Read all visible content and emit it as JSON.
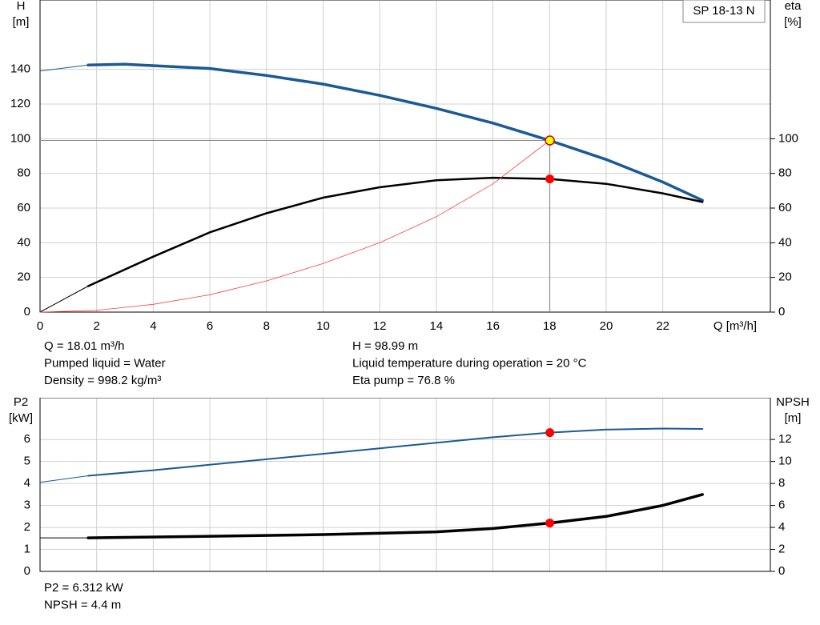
{
  "chart_data": [
    {
      "type": "line",
      "title": "SP 18-13 N",
      "xlabel": "Q [m³/h]",
      "ylabel": [
        "H",
        "[m]"
      ],
      "y2label": [
        "eta",
        "[%]"
      ],
      "xlim": [
        0,
        25.8
      ],
      "xticks": [
        0,
        2,
        4,
        6,
        8,
        10,
        12,
        14,
        16,
        18,
        20,
        22
      ],
      "xtick_labels": true,
      "ylim": [
        0,
        180
      ],
      "yticks": [
        0,
        20,
        40,
        60,
        80,
        100,
        120,
        140
      ],
      "y2lim": [
        0,
        180
      ],
      "y2ticks": [
        0,
        20,
        40,
        60,
        80,
        100
      ],
      "grid": true,
      "series": [
        {
          "color": "#1a5a96",
          "line_width": 1,
          "x": [
            0,
            1.7
          ],
          "values": [
            139,
            142.5
          ]
        },
        {
          "color": "#1a5a96",
          "line_width": 3.5,
          "x": [
            1.7,
            3,
            6,
            8,
            10,
            12,
            14,
            16,
            18,
            20,
            22,
            23.4
          ],
          "values": [
            142.5,
            143,
            140.5,
            136.5,
            131.5,
            125,
            117.5,
            109,
            99,
            88,
            75,
            64.5
          ]
        },
        {
          "color": "#000000",
          "line_width": 1,
          "axis": "y2",
          "x": [
            0,
            1.7
          ],
          "values": [
            0,
            15
          ]
        },
        {
          "color": "#000000",
          "line_width": 2.5,
          "axis": "y2",
          "x": [
            1.7,
            4,
            6,
            8,
            10,
            12,
            14,
            16,
            18,
            20,
            22,
            23.4
          ],
          "values": [
            15,
            32,
            46,
            57,
            66,
            72,
            76,
            77.5,
            76.8,
            74,
            68.5,
            63.5
          ]
        },
        {
          "color": "#ff4040",
          "line_width": 0.8,
          "x": [
            0,
            2,
            4,
            6,
            8,
            10,
            12,
            14,
            16,
            18
          ],
          "values": [
            0,
            1,
            4.5,
            10,
            18,
            28,
            40,
            55,
            74,
            99
          ]
        }
      ],
      "markers": [
        {
          "x": 18.01,
          "value": 98.99,
          "color": "#ffff00",
          "guides": true
        },
        {
          "x": 18.01,
          "value": 76.8,
          "color": "#ff0000",
          "axis": "y2"
        }
      ],
      "notes": [
        [
          "Q = 18.01 m³/h",
          "Pumped liquid = Water",
          "Density = 998.2 kg/m³"
        ],
        [
          "H = 98.99 m",
          "Liquid temperature during operation = 20 °C",
          "Eta pump = 76.8 %"
        ]
      ]
    },
    {
      "type": "line",
      "ylabel": [
        "P2",
        "[kW]"
      ],
      "y2label": [
        "NPSH",
        "[m]"
      ],
      "xlim": [
        0,
        25.8
      ],
      "xticks": [
        0,
        2,
        4,
        6,
        8,
        10,
        12,
        14,
        16,
        18,
        20,
        22
      ],
      "xtick_labels": false,
      "ylim": [
        0,
        7.9
      ],
      "yticks": [
        0,
        1,
        2,
        3,
        4,
        5,
        6
      ],
      "y2lim": [
        0,
        15.8
      ],
      "y2ticks": [
        0,
        2,
        4,
        6,
        8,
        10,
        12
      ],
      "grid": true,
      "series": [
        {
          "color": "#1a5a96",
          "line_width": 1,
          "x": [
            0,
            1.7
          ],
          "values": [
            4.05,
            4.35
          ]
        },
        {
          "color": "#1a5a96",
          "line_width": 2,
          "x": [
            1.7,
            4,
            8,
            12,
            16,
            18,
            20,
            22,
            23.4
          ],
          "values": [
            4.35,
            4.6,
            5.1,
            5.6,
            6.1,
            6.312,
            6.45,
            6.5,
            6.48
          ]
        },
        {
          "color": "#000000",
          "line_width": 1,
          "axis": "y2",
          "x": [
            0,
            1.7
          ],
          "values": [
            3.05,
            3.05
          ]
        },
        {
          "color": "#000000",
          "line_width": 3.5,
          "axis": "y2",
          "x": [
            1.7,
            6,
            10,
            14,
            16,
            18,
            20,
            22,
            23.4
          ],
          "values": [
            3.05,
            3.2,
            3.35,
            3.6,
            3.9,
            4.4,
            5.0,
            6.0,
            7.0
          ]
        }
      ],
      "markers": [
        {
          "x": 18.01,
          "value": 6.312,
          "color": "#ff0000"
        },
        {
          "x": 18.01,
          "value": 4.4,
          "color": "#ff0000",
          "axis": "y2"
        }
      ],
      "notes": [
        [
          "P2 = 6.312 kW",
          "NPSH = 4.4 m"
        ]
      ]
    }
  ]
}
